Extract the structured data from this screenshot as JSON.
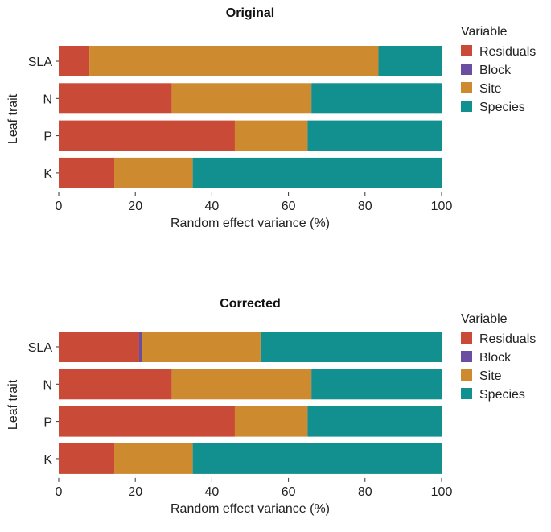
{
  "chart_data": [
    {
      "type": "bar",
      "orientation": "horizontal",
      "stacked": true,
      "title": "Original",
      "xlabel": "Random effect variance (%)",
      "ylabel": "Leaf trait",
      "xlim": [
        0,
        100
      ],
      "xticks": [
        "0",
        "20",
        "40",
        "60",
        "80",
        "100"
      ],
      "categories": [
        "SLA",
        "N",
        "P",
        "K"
      ],
      "legend_title": "Variable",
      "series": [
        {
          "name": "Residuals",
          "color": "#c94a36",
          "values": [
            8,
            29.5,
            46,
            14.5
          ]
        },
        {
          "name": "Block",
          "color": "#6a4fa0",
          "values": [
            0,
            0,
            0,
            0
          ]
        },
        {
          "name": "Site",
          "color": "#cd8a2e",
          "values": [
            75.5,
            36.5,
            19,
            20.5
          ]
        },
        {
          "name": "Species",
          "color": "#128f8f",
          "values": [
            16.5,
            34,
            35,
            65
          ]
        }
      ]
    },
    {
      "type": "bar",
      "orientation": "horizontal",
      "stacked": true,
      "title": "Corrected",
      "xlabel": "Random effect variance (%)",
      "ylabel": "Leaf trait",
      "xlim": [
        0,
        100
      ],
      "xticks": [
        "0",
        "20",
        "40",
        "60",
        "80",
        "100"
      ],
      "categories": [
        "SLA",
        "N",
        "P",
        "K"
      ],
      "legend_title": "Variable",
      "series": [
        {
          "name": "Residuals",
          "color": "#c94a36",
          "values": [
            21,
            29.5,
            46,
            14.5
          ]
        },
        {
          "name": "Block",
          "color": "#6a4fa0",
          "values": [
            0.7,
            0,
            0,
            0
          ]
        },
        {
          "name": "Site",
          "color": "#cd8a2e",
          "values": [
            31,
            36.5,
            19,
            20.5
          ]
        },
        {
          "name": "Species",
          "color": "#128f8f",
          "values": [
            47.3,
            34,
            35,
            65
          ]
        }
      ]
    }
  ]
}
